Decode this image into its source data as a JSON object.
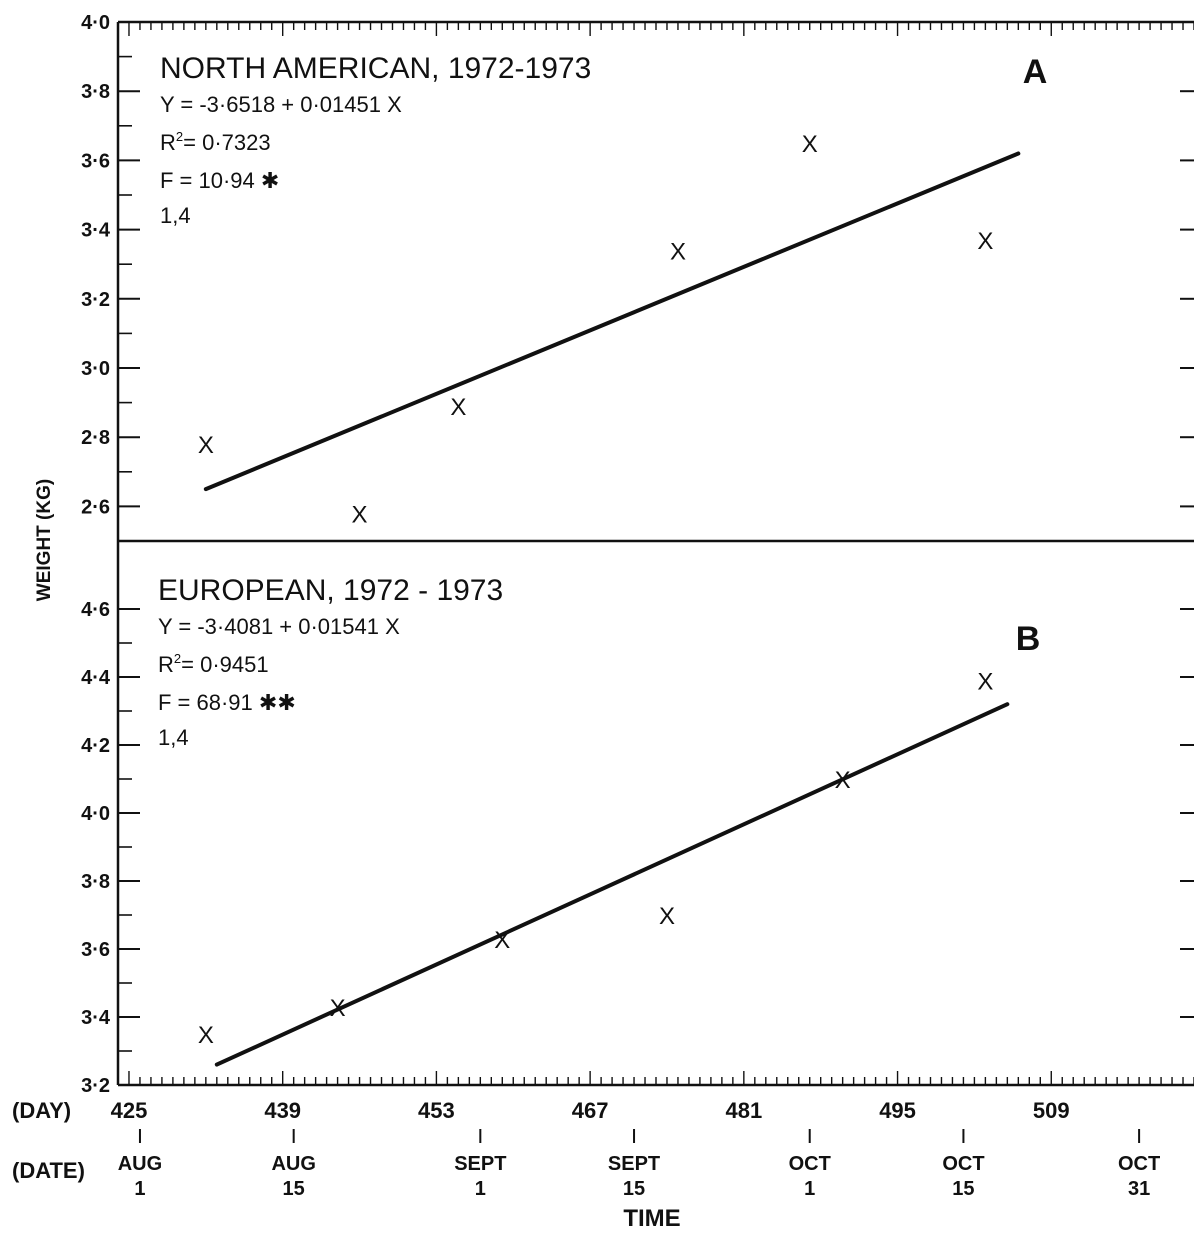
{
  "chart_data": [
    {
      "type": "scatter",
      "panel_letter": "A",
      "title": "NORTH AMERICAN, 1972-1973",
      "stats": {
        "equation": "Y = -3·6518 + 0·01451 X",
        "r2_label": "R",
        "r2_sup": "2",
        "r2_value": "= 0·7323",
        "f": "F = 10·94 ✱",
        "df": "1,4"
      },
      "ylim": [
        2.5,
        4.0
      ],
      "yticks": [
        "2·6",
        "2·8",
        "3·0",
        "3·2",
        "3·4",
        "3·6",
        "3·8",
        "4·0"
      ],
      "ytick_values": [
        2.6,
        2.8,
        3.0,
        3.2,
        3.4,
        3.6,
        3.8,
        4.0
      ],
      "points": [
        {
          "x": 432,
          "y": 2.78
        },
        {
          "x": 446,
          "y": 2.58
        },
        {
          "x": 455,
          "y": 2.89
        },
        {
          "x": 475,
          "y": 3.34
        },
        {
          "x": 487,
          "y": 3.65
        },
        {
          "x": 503,
          "y": 3.37
        }
      ],
      "fit_line": {
        "x": [
          432,
          506
        ],
        "y": [
          2.65,
          3.62
        ]
      }
    },
    {
      "type": "scatter",
      "panel_letter": "B",
      "title": "EUROPEAN, 1972 - 1973",
      "stats": {
        "equation": "Y = -3·4081 + 0·01541 X",
        "r2_label": "R",
        "r2_sup": "2",
        "r2_value": "= 0·9451",
        "f": "F = 68·91 ✱✱",
        "df": "1,4"
      },
      "ylim": [
        3.2,
        4.8
      ],
      "yticks": [
        "3·2",
        "3·4",
        "3·6",
        "3·8",
        "4·0",
        "4·2",
        "4·4",
        "4·6"
      ],
      "ytick_values": [
        3.2,
        3.4,
        3.6,
        3.8,
        4.0,
        4.2,
        4.4,
        4.6
      ],
      "points": [
        {
          "x": 432,
          "y": 3.35
        },
        {
          "x": 444,
          "y": 3.43
        },
        {
          "x": 459,
          "y": 3.63
        },
        {
          "x": 474,
          "y": 3.7
        },
        {
          "x": 490,
          "y": 4.1
        },
        {
          "x": 503,
          "y": 4.39
        }
      ],
      "fit_line": {
        "x": [
          433,
          505
        ],
        "y": [
          3.26,
          4.32
        ]
      }
    }
  ],
  "shared": {
    "ylabel": "WEIGHT (KG)",
    "xlabel": "TIME",
    "point_marker": "X",
    "xlim": [
      424,
      522
    ],
    "day_label": "(DAY)",
    "day_ticks": [
      {
        "x": 425,
        "label": "425"
      },
      {
        "x": 439,
        "label": "439"
      },
      {
        "x": 453,
        "label": "453"
      },
      {
        "x": 467,
        "label": "467"
      },
      {
        "x": 481,
        "label": "481"
      },
      {
        "x": 495,
        "label": "495"
      },
      {
        "x": 509,
        "label": "509"
      }
    ],
    "date_label": "(DATE)",
    "date_ticks": [
      {
        "x": 426,
        "line1": "AUG",
        "line2": "1"
      },
      {
        "x": 440,
        "line1": "AUG",
        "line2": "15"
      },
      {
        "x": 457,
        "line1": "SEPT",
        "line2": "1"
      },
      {
        "x": 471,
        "line1": "SEPT",
        "line2": "15"
      },
      {
        "x": 487,
        "line1": "OCT",
        "line2": "1"
      },
      {
        "x": 501,
        "line1": "OCT",
        "line2": "15"
      },
      {
        "x": 517,
        "line1": "OCT",
        "line2": "31"
      }
    ]
  }
}
